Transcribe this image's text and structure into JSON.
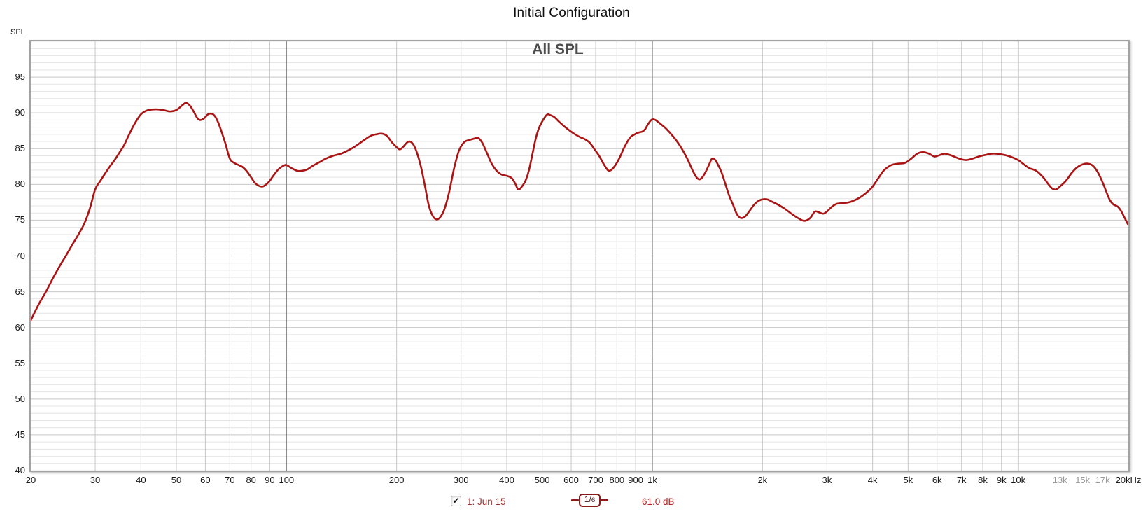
{
  "page": {
    "title": "Initial Configuration"
  },
  "chart": {
    "heading": "All SPL",
    "axis_unit": "SPL",
    "colors": {
      "trace": "#aa1414",
      "grid_minor_h": "#e4e4e4",
      "grid_major_h": "#c7c7c7",
      "grid_vertical": "#c7c7c7",
      "grid_emphasis": "#8c8c8c",
      "tick_text": "#1a1a1a",
      "tick_text_muted": "#9a9a9a",
      "legend_label": "#993333",
      "legend_level": "#b22222",
      "badge": "#8b1a1a"
    }
  },
  "legend": {
    "checkbox_checked": true,
    "check_glyph": "✔",
    "trace_label": "1: Jun 15",
    "smoothing_num": "1/",
    "smoothing_den": "6",
    "level": "61.0 dB"
  },
  "chart_data": {
    "type": "line",
    "title": "All SPL",
    "page_title": "Initial Configuration",
    "ylabel": "SPL",
    "x_scale": "log",
    "xlim": [
      20,
      20000
    ],
    "ylim": [
      40,
      100
    ],
    "grid": true,
    "y_major_step": 5,
    "y_minor_step": 1,
    "y_tick_labels": [
      95,
      90,
      85,
      80,
      75,
      70,
      65,
      60,
      55,
      50,
      45,
      40
    ],
    "emphasized_x": [
      100,
      1000,
      10000
    ],
    "x_ticks": [
      {
        "f": 20,
        "label": "20",
        "muted": false
      },
      {
        "f": 30,
        "label": "30",
        "muted": false
      },
      {
        "f": 40,
        "label": "40",
        "muted": false
      },
      {
        "f": 50,
        "label": "50",
        "muted": false
      },
      {
        "f": 60,
        "label": "60",
        "muted": false
      },
      {
        "f": 70,
        "label": "70",
        "muted": false
      },
      {
        "f": 80,
        "label": "80",
        "muted": false
      },
      {
        "f": 90,
        "label": "90",
        "muted": false
      },
      {
        "f": 100,
        "label": "100",
        "muted": false
      },
      {
        "f": 200,
        "label": "200",
        "muted": false
      },
      {
        "f": 300,
        "label": "300",
        "muted": false
      },
      {
        "f": 400,
        "label": "400",
        "muted": false
      },
      {
        "f": 500,
        "label": "500",
        "muted": false
      },
      {
        "f": 600,
        "label": "600",
        "muted": false
      },
      {
        "f": 700,
        "label": "700",
        "muted": false
      },
      {
        "f": 800,
        "label": "800",
        "muted": false
      },
      {
        "f": 900,
        "label": "900",
        "muted": false
      },
      {
        "f": 1000,
        "label": "1k",
        "muted": false
      },
      {
        "f": 2000,
        "label": "2k",
        "muted": false
      },
      {
        "f": 3000,
        "label": "3k",
        "muted": false
      },
      {
        "f": 4000,
        "label": "4k",
        "muted": false
      },
      {
        "f": 5000,
        "label": "5k",
        "muted": false
      },
      {
        "f": 6000,
        "label": "6k",
        "muted": false
      },
      {
        "f": 7000,
        "label": "7k",
        "muted": false
      },
      {
        "f": 8000,
        "label": "8k",
        "muted": false
      },
      {
        "f": 9000,
        "label": "9k",
        "muted": false
      },
      {
        "f": 10000,
        "label": "10k",
        "muted": false
      },
      {
        "f": 13000,
        "label": "13k",
        "muted": true
      },
      {
        "f": 15000,
        "label": "15k",
        "muted": true
      },
      {
        "f": 17000,
        "label": "17k",
        "muted": true
      },
      {
        "f": 20000,
        "label": "20kHz",
        "muted": false
      }
    ],
    "series": [
      {
        "name": "1: Jun 15",
        "smoothing": "1/6",
        "level_readout_db": 61.0,
        "color": "#aa1414",
        "points": [
          [
            20,
            61.0
          ],
          [
            21,
            63.2
          ],
          [
            22,
            65.0
          ],
          [
            23,
            66.9
          ],
          [
            24,
            68.6
          ],
          [
            25,
            70.1
          ],
          [
            26,
            71.6
          ],
          [
            27,
            73.0
          ],
          [
            28,
            74.5
          ],
          [
            29,
            76.6
          ],
          [
            30,
            79.3
          ],
          [
            31,
            80.5
          ],
          [
            32,
            81.6
          ],
          [
            33,
            82.6
          ],
          [
            34,
            83.5
          ],
          [
            35,
            84.5
          ],
          [
            36,
            85.5
          ],
          [
            37,
            86.8
          ],
          [
            38,
            88.0
          ],
          [
            39,
            89.0
          ],
          [
            40,
            89.8
          ],
          [
            41,
            90.2
          ],
          [
            42,
            90.4
          ],
          [
            44,
            90.5
          ],
          [
            46,
            90.4
          ],
          [
            48,
            90.2
          ],
          [
            50,
            90.4
          ],
          [
            52,
            91.1
          ],
          [
            53,
            91.4
          ],
          [
            54,
            91.2
          ],
          [
            55,
            90.7
          ],
          [
            56,
            90.0
          ],
          [
            57,
            89.3
          ],
          [
            58,
            89.0
          ],
          [
            59,
            89.1
          ],
          [
            60,
            89.4
          ],
          [
            61,
            89.8
          ],
          [
            62,
            89.9
          ],
          [
            63,
            89.8
          ],
          [
            64,
            89.4
          ],
          [
            65,
            88.7
          ],
          [
            66,
            87.8
          ],
          [
            68,
            85.8
          ],
          [
            70,
            83.6
          ],
          [
            72,
            83.0
          ],
          [
            74,
            82.7
          ],
          [
            76,
            82.4
          ],
          [
            78,
            81.8
          ],
          [
            80,
            81.0
          ],
          [
            82,
            80.2
          ],
          [
            84,
            79.8
          ],
          [
            86,
            79.7
          ],
          [
            88,
            80.0
          ],
          [
            90,
            80.5
          ],
          [
            92,
            81.2
          ],
          [
            95,
            82.1
          ],
          [
            98,
            82.6
          ],
          [
            100,
            82.7
          ],
          [
            103,
            82.3
          ],
          [
            107,
            81.9
          ],
          [
            110,
            81.9
          ],
          [
            114,
            82.1
          ],
          [
            118,
            82.6
          ],
          [
            123,
            83.1
          ],
          [
            128,
            83.6
          ],
          [
            134,
            84.0
          ],
          [
            141,
            84.3
          ],
          [
            148,
            84.8
          ],
          [
            155,
            85.4
          ],
          [
            162,
            86.1
          ],
          [
            170,
            86.8
          ],
          [
            176,
            87.0
          ],
          [
            182,
            87.1
          ],
          [
            188,
            86.8
          ],
          [
            194,
            85.9
          ],
          [
            200,
            85.2
          ],
          [
            204,
            84.9
          ],
          [
            208,
            85.2
          ],
          [
            213,
            85.8
          ],
          [
            217,
            86.0
          ],
          [
            222,
            85.6
          ],
          [
            227,
            84.5
          ],
          [
            233,
            82.5
          ],
          [
            239,
            79.8
          ],
          [
            245,
            77.0
          ],
          [
            251,
            75.6
          ],
          [
            257,
            75.1
          ],
          [
            263,
            75.4
          ],
          [
            270,
            76.5
          ],
          [
            278,
            78.8
          ],
          [
            287,
            82.2
          ],
          [
            296,
            84.7
          ],
          [
            306,
            85.9
          ],
          [
            316,
            86.2
          ],
          [
            326,
            86.4
          ],
          [
            334,
            86.5
          ],
          [
            343,
            85.8
          ],
          [
            353,
            84.4
          ],
          [
            363,
            83.0
          ],
          [
            374,
            82.0
          ],
          [
            386,
            81.4
          ],
          [
            400,
            81.2
          ],
          [
            412,
            80.9
          ],
          [
            421,
            80.2
          ],
          [
            428,
            79.4
          ],
          [
            433,
            79.3
          ],
          [
            440,
            79.7
          ],
          [
            450,
            80.5
          ],
          [
            460,
            82.0
          ],
          [
            470,
            84.2
          ],
          [
            480,
            86.4
          ],
          [
            490,
            87.9
          ],
          [
            500,
            88.8
          ],
          [
            510,
            89.5
          ],
          [
            517,
            89.8
          ],
          [
            525,
            89.7
          ],
          [
            540,
            89.4
          ],
          [
            555,
            88.8
          ],
          [
            575,
            88.1
          ],
          [
            595,
            87.5
          ],
          [
            615,
            87.0
          ],
          [
            635,
            86.6
          ],
          [
            655,
            86.3
          ],
          [
            675,
            85.8
          ],
          [
            695,
            84.9
          ],
          [
            715,
            84.0
          ],
          [
            735,
            82.9
          ],
          [
            750,
            82.2
          ],
          [
            760,
            81.9
          ],
          [
            775,
            82.1
          ],
          [
            795,
            82.8
          ],
          [
            815,
            83.8
          ],
          [
            835,
            85.0
          ],
          [
            855,
            86.0
          ],
          [
            875,
            86.7
          ],
          [
            895,
            87.0
          ],
          [
            910,
            87.2
          ],
          [
            925,
            87.3
          ],
          [
            940,
            87.4
          ],
          [
            955,
            87.7
          ],
          [
            970,
            88.3
          ],
          [
            985,
            88.8
          ],
          [
            1000,
            89.1
          ],
          [
            1020,
            89.0
          ],
          [
            1050,
            88.5
          ],
          [
            1090,
            87.8
          ],
          [
            1140,
            86.7
          ],
          [
            1190,
            85.4
          ],
          [
            1240,
            83.8
          ],
          [
            1290,
            81.9
          ],
          [
            1320,
            81.0
          ],
          [
            1345,
            80.7
          ],
          [
            1370,
            81.0
          ],
          [
            1400,
            81.8
          ],
          [
            1430,
            82.8
          ],
          [
            1455,
            83.6
          ],
          [
            1480,
            83.5
          ],
          [
            1510,
            82.8
          ],
          [
            1545,
            81.7
          ],
          [
            1580,
            80.2
          ],
          [
            1620,
            78.5
          ],
          [
            1660,
            77.2
          ],
          [
            1700,
            75.9
          ],
          [
            1730,
            75.4
          ],
          [
            1760,
            75.3
          ],
          [
            1800,
            75.6
          ],
          [
            1850,
            76.4
          ],
          [
            1900,
            77.2
          ],
          [
            1950,
            77.7
          ],
          [
            2000,
            77.9
          ],
          [
            2060,
            77.9
          ],
          [
            2120,
            77.6
          ],
          [
            2200,
            77.2
          ],
          [
            2300,
            76.6
          ],
          [
            2400,
            75.9
          ],
          [
            2500,
            75.3
          ],
          [
            2600,
            74.9
          ],
          [
            2700,
            75.3
          ],
          [
            2780,
            76.2
          ],
          [
            2850,
            76.1
          ],
          [
            2930,
            75.9
          ],
          [
            3000,
            76.2
          ],
          [
            3100,
            76.9
          ],
          [
            3200,
            77.3
          ],
          [
            3350,
            77.4
          ],
          [
            3500,
            77.6
          ],
          [
            3700,
            78.2
          ],
          [
            3900,
            79.1
          ],
          [
            4000,
            79.7
          ],
          [
            4150,
            80.9
          ],
          [
            4300,
            82.0
          ],
          [
            4500,
            82.7
          ],
          [
            4700,
            82.9
          ],
          [
            4900,
            83.0
          ],
          [
            5100,
            83.6
          ],
          [
            5300,
            84.3
          ],
          [
            5500,
            84.5
          ],
          [
            5700,
            84.3
          ],
          [
            5900,
            83.9
          ],
          [
            6100,
            84.1
          ],
          [
            6300,
            84.3
          ],
          [
            6600,
            84.0
          ],
          [
            6900,
            83.6
          ],
          [
            7200,
            83.4
          ],
          [
            7500,
            83.6
          ],
          [
            7800,
            83.9
          ],
          [
            8100,
            84.1
          ],
          [
            8500,
            84.3
          ],
          [
            9000,
            84.2
          ],
          [
            9500,
            83.9
          ],
          [
            10000,
            83.4
          ],
          [
            10300,
            82.9
          ],
          [
            10700,
            82.3
          ],
          [
            11200,
            81.9
          ],
          [
            11700,
            81.0
          ],
          [
            12100,
            80.0
          ],
          [
            12400,
            79.4
          ],
          [
            12700,
            79.3
          ],
          [
            13000,
            79.7
          ],
          [
            13500,
            80.5
          ],
          [
            14000,
            81.6
          ],
          [
            14500,
            82.4
          ],
          [
            15000,
            82.8
          ],
          [
            15500,
            82.9
          ],
          [
            16000,
            82.6
          ],
          [
            16500,
            81.7
          ],
          [
            17000,
            80.3
          ],
          [
            17400,
            79.0
          ],
          [
            17800,
            77.8
          ],
          [
            18200,
            77.2
          ],
          [
            18700,
            76.9
          ],
          [
            19100,
            76.3
          ],
          [
            19500,
            75.4
          ],
          [
            20000,
            74.3
          ]
        ]
      }
    ]
  }
}
